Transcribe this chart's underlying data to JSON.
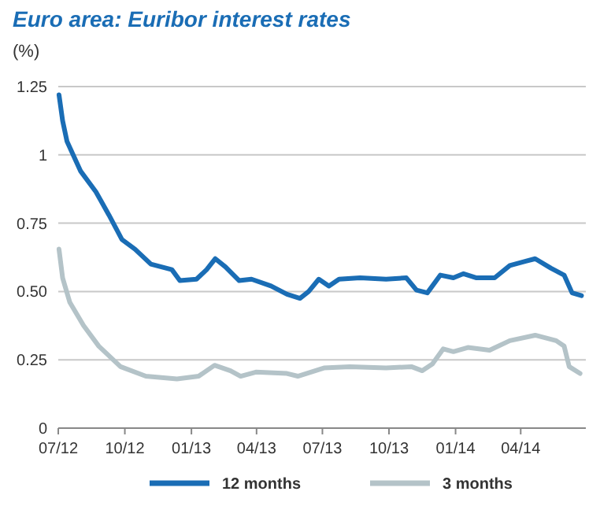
{
  "chart_data": {
    "type": "line",
    "title": "Euro area: Euribor interest rates",
    "ylabel": "(%)",
    "xlim": [
      "2012-07-01",
      "2014-06-30"
    ],
    "xticks": [
      {
        "value": "2012-07-01",
        "label": "07/12"
      },
      {
        "value": "2012-10-01",
        "label": "10/12"
      },
      {
        "value": "2013-01-01",
        "label": "01/13"
      },
      {
        "value": "2013-04-01",
        "label": "04/13"
      },
      {
        "value": "2013-07-01",
        "label": "07/13"
      },
      {
        "value": "2013-10-01",
        "label": "10/13"
      },
      {
        "value": "2014-01-01",
        "label": "01/14"
      },
      {
        "value": "2014-04-01",
        "label": "04/14"
      }
    ],
    "ylim": [
      0,
      1.25
    ],
    "yticks": [
      0,
      0.25,
      {
        "value": 0.5,
        "label": "0.50"
      },
      0.75,
      1,
      1.25
    ],
    "grid": "y",
    "legend": "bottom",
    "line_style": "solid",
    "series": [
      {
        "name": "12 months",
        "color": "#1a6db5",
        "x": [
          "2012-07-02",
          "2012-07-07",
          "2012-07-13",
          "2012-08-01",
          "2012-08-22",
          "2012-09-09",
          "2012-09-27",
          "2012-10-15",
          "2012-11-06",
          "2012-12-05",
          "2012-12-16",
          "2013-01-08",
          "2013-01-22",
          "2013-02-03",
          "2013-02-17",
          "2013-03-08",
          "2013-03-25",
          "2013-04-21",
          "2013-05-13",
          "2013-05-31",
          "2013-06-12",
          "2013-06-26",
          "2013-07-10",
          "2013-07-24",
          "2013-08-22",
          "2013-09-27",
          "2013-10-25",
          "2013-11-08",
          "2013-11-23",
          "2013-12-11",
          "2013-12-29",
          "2014-01-12",
          "2014-01-30",
          "2014-02-24",
          "2014-03-17",
          "2014-04-07",
          "2014-04-21",
          "2014-05-13",
          "2014-05-31",
          "2014-06-11",
          "2014-06-24"
        ],
        "values": [
          1.22,
          1.125,
          1.05,
          0.94,
          0.865,
          0.78,
          0.69,
          0.655,
          0.6,
          0.58,
          0.54,
          0.545,
          0.58,
          0.62,
          0.59,
          0.54,
          0.545,
          0.52,
          0.49,
          0.475,
          0.5,
          0.545,
          0.52,
          0.545,
          0.55,
          0.545,
          0.55,
          0.505,
          0.495,
          0.56,
          0.55,
          0.565,
          0.55,
          0.55,
          0.595,
          0.61,
          0.62,
          0.585,
          0.56,
          0.495,
          0.485
        ]
      },
      {
        "name": "3 months",
        "color": "#b4c3c8",
        "x": [
          "2012-07-02",
          "2012-07-07",
          "2012-07-17",
          "2012-08-05",
          "2012-08-26",
          "2012-09-25",
          "2012-10-30",
          "2012-12-12",
          "2013-01-11",
          "2013-02-02",
          "2013-02-24",
          "2013-03-10",
          "2013-03-31",
          "2013-05-13",
          "2013-05-28",
          "2013-07-03",
          "2013-08-08",
          "2013-09-27",
          "2013-11-01",
          "2013-11-16",
          "2013-11-30",
          "2013-12-15",
          "2013-12-29",
          "2014-01-18",
          "2014-02-17",
          "2014-03-17",
          "2014-04-21",
          "2014-05-20",
          "2014-05-31",
          "2014-06-07",
          "2014-06-22"
        ],
        "values": [
          0.655,
          0.55,
          0.46,
          0.375,
          0.3,
          0.225,
          0.19,
          0.18,
          0.19,
          0.23,
          0.21,
          0.19,
          0.205,
          0.2,
          0.19,
          0.22,
          0.225,
          0.22,
          0.225,
          0.21,
          0.235,
          0.29,
          0.28,
          0.295,
          0.285,
          0.32,
          0.34,
          0.32,
          0.3,
          0.225,
          0.2
        ]
      }
    ]
  }
}
